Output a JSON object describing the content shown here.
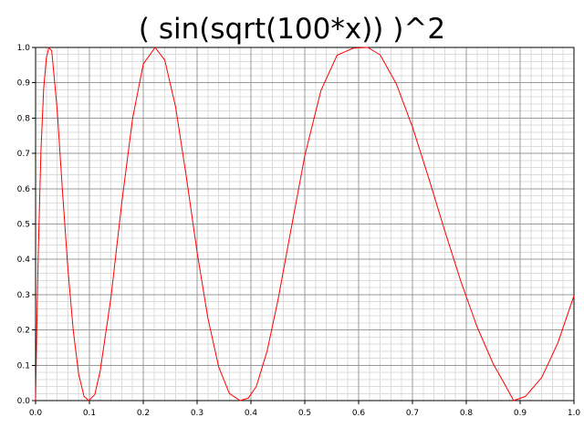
{
  "chart_data": {
    "type": "line",
    "title": "( sin(sqrt(100*x)) )^2",
    "xlabel": "",
    "ylabel": "",
    "xlim": [
      0.0,
      1.0
    ],
    "ylim": [
      0.0,
      1.0
    ],
    "grid": true,
    "x_ticks": [
      "0.0",
      "0.1",
      "0.2",
      "0.3",
      "0.4",
      "0.5",
      "0.6",
      "0.7",
      "0.8",
      "0.9",
      "1.0"
    ],
    "y_ticks": [
      "0.0",
      "0.1",
      "0.2",
      "0.3",
      "0.4",
      "0.5",
      "0.6",
      "0.7",
      "0.8",
      "0.9",
      "1.0"
    ],
    "series": [
      {
        "color": "#ff0000",
        "x": [
          0.0,
          0.0025,
          0.005,
          0.01,
          0.015,
          0.02,
          0.0247,
          0.03,
          0.04,
          0.05,
          0.06,
          0.07,
          0.08,
          0.09,
          0.0987,
          0.11,
          0.12,
          0.14,
          0.16,
          0.18,
          0.2,
          0.222,
          0.24,
          0.26,
          0.28,
          0.3,
          0.32,
          0.34,
          0.36,
          0.38,
          0.395,
          0.41,
          0.43,
          0.45,
          0.47,
          0.5,
          0.53,
          0.56,
          0.59,
          0.617,
          0.64,
          0.67,
          0.7,
          0.73,
          0.76,
          0.79,
          0.82,
          0.85,
          0.87,
          0.888,
          0.91,
          0.94,
          0.97,
          1.0
        ],
        "y": [
          0.0,
          0.227,
          0.418,
          0.708,
          0.883,
          0.97,
          1.0,
          0.99,
          0.826,
          0.592,
          0.374,
          0.198,
          0.075,
          0.012,
          0.0,
          0.017,
          0.084,
          0.292,
          0.559,
          0.797,
          0.953,
          1.0,
          0.964,
          0.832,
          0.634,
          0.42,
          0.234,
          0.096,
          0.02,
          0.0,
          0.007,
          0.04,
          0.14,
          0.283,
          0.448,
          0.693,
          0.878,
          0.978,
          0.998,
          1.0,
          0.979,
          0.897,
          0.775,
          0.631,
          0.481,
          0.337,
          0.209,
          0.104,
          0.05,
          0.0,
          0.012,
          0.065,
          0.163,
          0.297
        ]
      }
    ]
  }
}
